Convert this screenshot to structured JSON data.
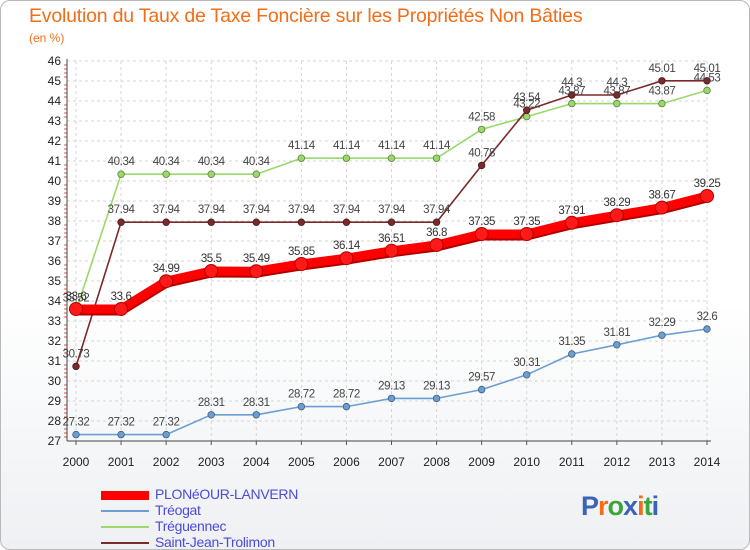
{
  "header": {
    "title": "Evolution du Taux de Taxe Foncière sur les Propriétés Non Bâties",
    "subtitle": "(en %)"
  },
  "logo": {
    "text": "Proxiti",
    "colors": [
      "#3b63b8",
      "#f36d19",
      "#3aa53a",
      "#3b63b8",
      "#f36d19",
      "#3aa53a",
      "#3b63b8"
    ]
  },
  "chart_data": {
    "type": "line",
    "title": "Evolution du Taux de Taxe Foncière sur les Propriétés Non Bâties",
    "ylabel": "(en %)",
    "xlabel": "",
    "x": [
      "2000",
      "2001",
      "2002",
      "2003",
      "2004",
      "2005",
      "2006",
      "2007",
      "2008",
      "2009",
      "2010",
      "2011",
      "2012",
      "2013",
      "2014"
    ],
    "ylim": [
      27,
      46
    ],
    "yticks": [
      "27",
      "28",
      "29",
      "30",
      "31",
      "32",
      "33",
      "34",
      "35",
      "36",
      "37",
      "38",
      "39",
      "40",
      "41",
      "42",
      "43",
      "44",
      "45",
      "46"
    ],
    "grid": true,
    "legend_position": "bottom-left",
    "series": [
      {
        "name": "PLONéOUR-LANVERN",
        "color": "#ff0000",
        "values": [
          33.6,
          33.6,
          34.99,
          35.5,
          35.49,
          35.85,
          36.14,
          36.51,
          36.8,
          37.35,
          37.35,
          37.91,
          38.29,
          38.67,
          39.25
        ],
        "labels": [
          "33.6",
          "33.6",
          "34.99",
          "35.5",
          "35.49",
          "35.85",
          "36.14",
          "36.51",
          "36.8",
          "37.35",
          "37.35",
          "37.91",
          "38.29",
          "38.67",
          "39.25"
        ]
      },
      {
        "name": "Tréogat",
        "color": "#6b9fd1",
        "values": [
          27.32,
          27.32,
          27.32,
          28.31,
          28.31,
          28.72,
          28.72,
          29.13,
          29.13,
          29.57,
          30.31,
          31.35,
          31.81,
          32.29,
          32.6
        ],
        "labels": [
          "27.32",
          "27.32",
          "27.32",
          "28.31",
          "28.31",
          "28.72",
          "28.72",
          "29.13",
          "29.13",
          "29.57",
          "30.31",
          "31.35",
          "31.81",
          "32.29",
          "32.6"
        ]
      },
      {
        "name": "Tréguennec",
        "color": "#9ad86b",
        "values": [
          33.52,
          40.34,
          40.34,
          40.34,
          40.34,
          41.14,
          41.14,
          41.14,
          41.14,
          42.58,
          43.22,
          43.87,
          43.87,
          43.87,
          44.53
        ],
        "labels": [
          "33.52",
          "40.34",
          "40.34",
          "40.34",
          "40.34",
          "41.14",
          "41.14",
          "41.14",
          "41.14",
          "42.58",
          "43.22",
          "43.87",
          "43.87",
          "43.87",
          "44.53"
        ]
      },
      {
        "name": "Saint-Jean-Trolimon",
        "color": "#7a2a2a",
        "values": [
          30.73,
          37.94,
          37.94,
          37.94,
          37.94,
          37.94,
          37.94,
          37.94,
          37.94,
          40.78,
          43.54,
          44.3,
          44.3,
          45.01,
          45.01
        ],
        "labels": [
          "30.73",
          "37.94",
          "37.94",
          "37.94",
          "37.94",
          "37.94",
          "37.94",
          "37.94",
          "37.94",
          "40.78",
          "43.54",
          "44.3",
          "44.3",
          "45.01",
          "45.01"
        ]
      }
    ]
  }
}
